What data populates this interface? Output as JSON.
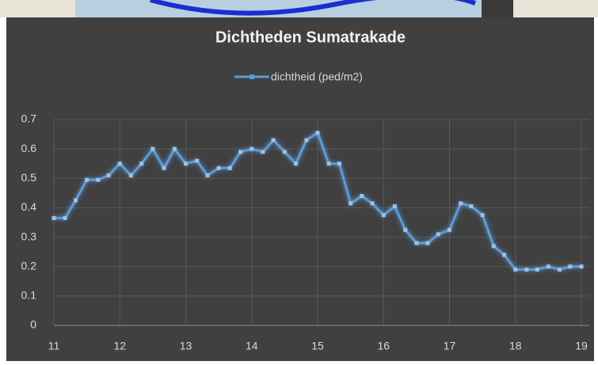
{
  "chart_data": {
    "type": "line",
    "title": "Dichtheden Sumatrakade",
    "x": [
      11,
      11.17,
      11.33,
      11.5,
      11.67,
      11.83,
      12,
      12.17,
      12.33,
      12.5,
      12.67,
      12.83,
      13,
      13.17,
      13.33,
      13.5,
      13.67,
      13.83,
      14,
      14.17,
      14.33,
      14.5,
      14.67,
      14.83,
      15,
      15.17,
      15.33,
      15.5,
      15.67,
      15.83,
      16,
      16.17,
      16.33,
      16.5,
      16.67,
      16.83,
      17,
      17.17,
      17.33,
      17.5,
      17.67,
      17.83,
      18,
      18.17,
      18.33,
      18.5,
      18.67,
      18.83,
      19
    ],
    "series": [
      {
        "name": "dichtheid (ped/m2)",
        "color": "#5b9bd5",
        "values": [
          0.365,
          0.365,
          0.425,
          0.495,
          0.495,
          0.51,
          0.55,
          0.51,
          0.55,
          0.6,
          0.535,
          0.6,
          0.55,
          0.56,
          0.51,
          0.535,
          0.535,
          0.59,
          0.6,
          0.59,
          0.63,
          0.59,
          0.55,
          0.63,
          0.655,
          0.55,
          0.55,
          0.415,
          0.44,
          0.415,
          0.375,
          0.405,
          0.325,
          0.28,
          0.28,
          0.31,
          0.325,
          0.415,
          0.405,
          0.375,
          0.27,
          0.24,
          0.19,
          0.19,
          0.19,
          0.2,
          0.19,
          0.2,
          0.2
        ]
      }
    ],
    "xlim": [
      11,
      19
    ],
    "xticks": [
      11,
      12,
      13,
      14,
      15,
      16,
      17,
      18,
      19
    ],
    "ylim": [
      0,
      0.7
    ],
    "yticks": [
      0,
      0.1,
      0.2,
      0.3,
      0.4,
      0.5,
      0.6,
      0.7
    ],
    "grid": true,
    "legend": "top"
  }
}
